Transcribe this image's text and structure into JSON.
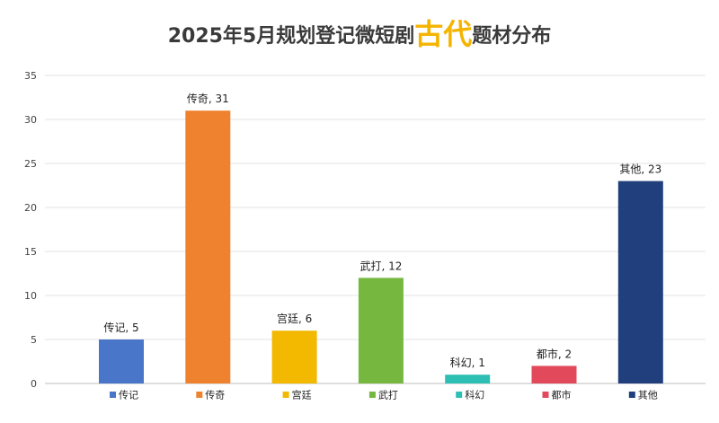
{
  "title": {
    "prefix": "2025年5月规划登记微短剧",
    "highlight": "古代",
    "suffix": "题材分布",
    "highlight_color": "#f4b400"
  },
  "chart_data": {
    "type": "bar",
    "categories": [
      "传记",
      "传奇",
      "宫廷",
      "武打",
      "科幻",
      "都市",
      "其他"
    ],
    "values": [
      5,
      31,
      6,
      12,
      1,
      2,
      23
    ],
    "data_labels": [
      "传记, 5",
      "传奇, 31",
      "宫廷, 6",
      "武打, 12",
      "科幻, 1",
      "都市, 2",
      "其他, 23"
    ],
    "colors": [
      "#4a76c9",
      "#ee822f",
      "#f2b900",
      "#76b83f",
      "#2ebfb4",
      "#e24a5b",
      "#213f7c"
    ],
    "ylim": [
      0,
      35
    ],
    "yticks": [
      0,
      5,
      10,
      15,
      20,
      25,
      30,
      35
    ],
    "grid": true,
    "legend": "bottom"
  }
}
